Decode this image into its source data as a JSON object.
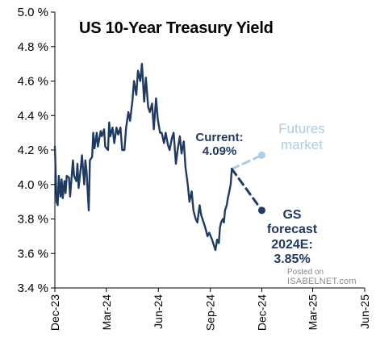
{
  "chart_data": {
    "type": "line",
    "title": "US 10-Year Treasury Yield",
    "xlabel": "",
    "ylabel": "",
    "ylim": [
      3.4,
      5.0
    ],
    "y_ticks": [
      3.4,
      3.6,
      3.8,
      4.0,
      4.2,
      4.4,
      4.6,
      4.8,
      5.0
    ],
    "y_tick_labels": [
      "3.4 %",
      "3.6 %",
      "3.8 %",
      "4.0 %",
      "4.2 %",
      "4.4 %",
      "4.6 %",
      "4.8 %",
      "5.0 %"
    ],
    "xlim": [
      "2023-12-01",
      "2025-06-01"
    ],
    "x_ticks": [
      "2023-12-01",
      "2024-03-01",
      "2024-06-01",
      "2024-09-01",
      "2024-12-01",
      "2025-03-01",
      "2025-06-01"
    ],
    "x_tick_labels": [
      "Dec-23",
      "Mar-24",
      "Jun-24",
      "Sep-24",
      "Dec-24",
      "Mar-25",
      "Jun-25"
    ],
    "grid": false,
    "series": [
      {
        "color": "#1f3b63",
        "style": "solid",
        "x": [
          "2023-12-01",
          "2023-12-04",
          "2023-12-06",
          "2023-12-08",
          "2023-12-11",
          "2023-12-13",
          "2023-12-15",
          "2023-12-18",
          "2023-12-20",
          "2023-12-22",
          "2023-12-26",
          "2023-12-28",
          "2024-01-02",
          "2024-01-04",
          "2024-01-08",
          "2024-01-10",
          "2024-01-12",
          "2024-01-16",
          "2024-01-18",
          "2024-01-22",
          "2024-01-24",
          "2024-01-26",
          "2024-01-30",
          "2024-02-01",
          "2024-02-05",
          "2024-02-07",
          "2024-02-09",
          "2024-02-13",
          "2024-02-15",
          "2024-02-20",
          "2024-02-22",
          "2024-02-26",
          "2024-02-28",
          "2024-03-04",
          "2024-03-06",
          "2024-03-08",
          "2024-03-12",
          "2024-03-15",
          "2024-03-19",
          "2024-03-22",
          "2024-03-26",
          "2024-03-29",
          "2024-04-02",
          "2024-04-05",
          "2024-04-09",
          "2024-04-12",
          "2024-04-16",
          "2024-04-19",
          "2024-04-23",
          "2024-04-26",
          "2024-04-30",
          "2024-05-03",
          "2024-05-07",
          "2024-05-10",
          "2024-05-14",
          "2024-05-17",
          "2024-05-21",
          "2024-05-24",
          "2024-05-28",
          "2024-05-31",
          "2024-06-04",
          "2024-06-07",
          "2024-06-11",
          "2024-06-14",
          "2024-06-18",
          "2024-06-21",
          "2024-06-25",
          "2024-06-28",
          "2024-07-02",
          "2024-07-05",
          "2024-07-09",
          "2024-07-12",
          "2024-07-16",
          "2024-07-19",
          "2024-07-23",
          "2024-07-26",
          "2024-07-30",
          "2024-08-02",
          "2024-08-06",
          "2024-08-09",
          "2024-08-13",
          "2024-08-16",
          "2024-08-20",
          "2024-08-23",
          "2024-08-27",
          "2024-08-30",
          "2024-09-04",
          "2024-09-07",
          "2024-09-10",
          "2024-09-13",
          "2024-09-16",
          "2024-09-18",
          "2024-09-20",
          "2024-09-23",
          "2024-09-25",
          "2024-09-27",
          "2024-09-30",
          "2024-10-02",
          "2024-10-04",
          "2024-10-07",
          "2024-10-09"
        ],
        "values": [
          4.22,
          3.9,
          3.88,
          4.05,
          3.93,
          4.03,
          3.92,
          4.02,
          3.95,
          4.05,
          4.04,
          3.93,
          4.14,
          4.05,
          4.02,
          4.12,
          3.98,
          4.1,
          4.17,
          4.0,
          4.14,
          4.08,
          3.85,
          4.14,
          4.16,
          4.3,
          4.21,
          4.3,
          4.22,
          4.31,
          4.28,
          4.32,
          4.22,
          4.2,
          4.36,
          4.28,
          4.33,
          4.24,
          4.33,
          4.29,
          4.33,
          4.2,
          4.2,
          4.33,
          4.42,
          4.37,
          4.48,
          4.6,
          4.52,
          4.66,
          4.6,
          4.7,
          4.48,
          4.62,
          4.45,
          4.42,
          4.47,
          4.32,
          4.5,
          4.38,
          4.3,
          4.3,
          4.24,
          4.3,
          4.23,
          4.2,
          4.27,
          4.3,
          4.12,
          4.2,
          4.28,
          4.18,
          4.25,
          4.1,
          4.0,
          3.9,
          3.96,
          3.85,
          3.8,
          3.78,
          3.88,
          3.82,
          3.78,
          3.75,
          3.7,
          3.72,
          3.68,
          3.65,
          3.62,
          3.68,
          3.66,
          3.75,
          3.78,
          3.8,
          3.78,
          3.85,
          3.88,
          3.92,
          3.95,
          4.0,
          4.09
        ]
      },
      {
        "name": "Futures market",
        "color": "#a9cde9",
        "style": "dashed",
        "x": [
          "2024-10-09",
          "2024-12-01"
        ],
        "values": [
          4.09,
          4.17
        ]
      },
      {
        "name": "GS forecast 2024E",
        "color": "#1f3b63",
        "style": "dashed",
        "x": [
          "2024-10-09",
          "2024-12-01"
        ],
        "values": [
          4.09,
          3.85
        ]
      }
    ],
    "annotations": [
      {
        "lines": [
          "Current:",
          "4.09%"
        ]
      },
      {
        "lines": [
          "Futures",
          "market"
        ]
      },
      {
        "lines": [
          "GS",
          "forecast",
          "2024E:",
          "3.85%"
        ]
      }
    ]
  },
  "watermark": {
    "line1": "Posted on",
    "line2": "ISABELNET.com"
  }
}
